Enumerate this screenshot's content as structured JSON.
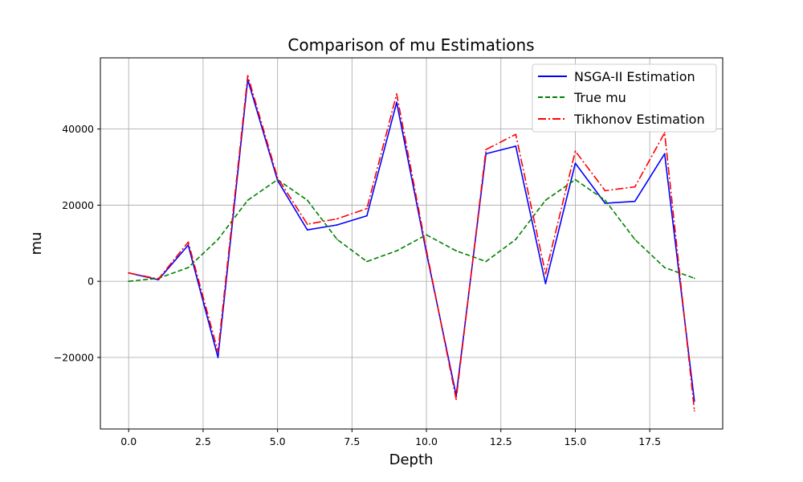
{
  "chart_data": {
    "type": "line",
    "title": "Comparison of mu Estimations",
    "xlabel": "Depth",
    "ylabel": "mu",
    "xlim": [
      -0.95,
      19.95
    ],
    "ylim": [
      -38800,
      58700
    ],
    "xticks": [
      0.0,
      2.5,
      5.0,
      7.5,
      10.0,
      12.5,
      15.0,
      17.5
    ],
    "xtick_labels": [
      "0.0",
      "2.5",
      "5.0",
      "7.5",
      "10.0",
      "12.5",
      "15.0",
      "17.5"
    ],
    "yticks": [
      -20000,
      0,
      20000,
      40000
    ],
    "ytick_labels": [
      "−20000",
      "0",
      "20000",
      "40000"
    ],
    "grid": true,
    "legend_position": "upper-right",
    "x": [
      0,
      1,
      2,
      3,
      4,
      5,
      6,
      7,
      8,
      9,
      10,
      11,
      12,
      13,
      14,
      15,
      16,
      17,
      18,
      19
    ],
    "series": [
      {
        "name": "NSGA-II Estimation",
        "color": "#0000ff",
        "style": "solid",
        "values": [
          2200,
          400,
          9500,
          -20000,
          53000,
          26500,
          13500,
          14800,
          17200,
          47000,
          7500,
          -30000,
          33500,
          35500,
          -600,
          31000,
          20500,
          21000,
          33500,
          -31500
        ]
      },
      {
        "name": "True mu",
        "color": "#008000",
        "style": "dashed",
        "values": [
          0,
          800,
          3600,
          11000,
          21300,
          26700,
          21300,
          11000,
          5200,
          8000,
          12200,
          8000,
          5200,
          11000,
          21300,
          26700,
          21300,
          11000,
          3600,
          800
        ]
      },
      {
        "name": "Tikhonov Estimation",
        "color": "#ff0000",
        "style": "dashdot",
        "values": [
          2200,
          600,
          10300,
          -18500,
          54000,
          27200,
          15000,
          16400,
          19100,
          49200,
          8200,
          -31000,
          34600,
          38600,
          2000,
          34200,
          23800,
          24800,
          39000,
          -34000
        ]
      }
    ]
  }
}
